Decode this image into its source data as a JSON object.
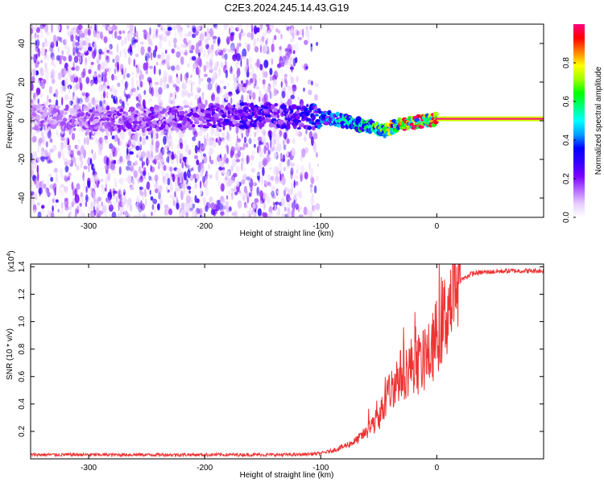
{
  "title": "C2E3.2024.245.14.43.G19",
  "colors": {
    "snr_line": "#ee3333",
    "background": "#ffffff",
    "axis": "#000000",
    "colormap": [
      "#ffffff",
      "#e6ccff",
      "#b366ff",
      "#7a00ff",
      "#3300ff",
      "#0000ff",
      "#00a0ff",
      "#00ffff",
      "#00ff80",
      "#00ff00",
      "#a0ff00",
      "#ffff00",
      "#ff8000",
      "#ff0000",
      "#ff0080"
    ]
  },
  "chart_data": [
    {
      "type": "heatmap",
      "title": "C2E3.2024.245.14.43.G19",
      "xlabel": "Height of straight line (km)",
      "ylabel": "Frequency (Hz)",
      "xlim": [
        -350,
        92
      ],
      "ylim": [
        -50,
        50
      ],
      "x_ticks": [
        -300,
        -200,
        -100,
        0
      ],
      "y_ticks": [
        -40,
        -20,
        0,
        20,
        40
      ],
      "grid": false,
      "colorbar": {
        "label": "Normalized spectral amplitude",
        "range": [
          0,
          1
        ],
        "ticks": [
          0.0,
          0.2,
          0.4,
          0.6,
          0.8
        ]
      },
      "ridge": {
        "description_x_km": [
          -350,
          -300,
          -250,
          -200,
          -150,
          -120,
          -100,
          -80,
          -60,
          -45,
          -38,
          -30,
          -20,
          -10,
          0,
          20,
          50,
          92
        ],
        "frequency_hz": [
          2,
          1,
          1,
          2,
          3,
          2,
          2,
          0,
          -3,
          -5,
          -3,
          -2,
          -1,
          0,
          1,
          1,
          1,
          1
        ],
        "peak_amplitude": [
          0.15,
          0.18,
          0.2,
          0.25,
          0.3,
          0.3,
          0.4,
          0.55,
          0.6,
          0.75,
          0.9,
          0.9,
          0.95,
          0.95,
          1.0,
          1.0,
          1.0,
          1.0
        ]
      },
      "noise_extent_x_km": [
        -350,
        -112
      ]
    },
    {
      "type": "line",
      "xlabel": "Height of straight line (km)",
      "ylabel": "SNR (10 * v/v)",
      "y_multiplier_label": "(x10",
      "y_multiplier_exponent": "4",
      "y_multiplier_close": ")",
      "xlim": [
        -350,
        92
      ],
      "ylim": [
        0,
        1.42
      ],
      "x_ticks": [
        -300,
        -200,
        -100,
        0
      ],
      "y_ticks": [
        0.2,
        0.4,
        0.6,
        0.8,
        1.0,
        1.2,
        1.4
      ],
      "grid": false,
      "series": [
        {
          "x": [
            -350,
            -300,
            -250,
            -200,
            -150,
            -120,
            -100,
            -90,
            -80,
            -70,
            -60,
            -50,
            -45,
            -40,
            -35,
            -30,
            -25,
            -20,
            -15,
            -10,
            -5,
            0,
            5,
            10,
            15,
            20,
            30,
            40,
            60,
            92
          ],
          "y": [
            0.03,
            0.03,
            0.03,
            0.03,
            0.03,
            0.03,
            0.04,
            0.06,
            0.09,
            0.13,
            0.2,
            0.3,
            0.4,
            0.5,
            0.58,
            0.62,
            0.65,
            0.7,
            0.68,
            0.72,
            0.78,
            0.9,
            1.0,
            1.1,
            1.22,
            1.3,
            1.35,
            1.36,
            1.37,
            1.37
          ]
        }
      ]
    }
  ]
}
